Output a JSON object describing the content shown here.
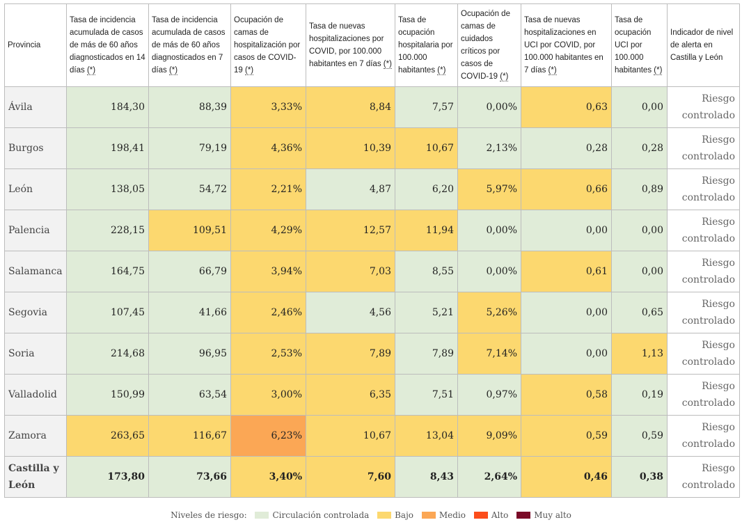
{
  "headers": {
    "province": "Provincia",
    "c1": "Tasa de incidencia acumulada de casos de más de 60 años diagnosticados en 14 días",
    "c2": "Tasa de incidencia acumulada de casos de más de 60 años diagnosticados en 7 días",
    "c3": "Ocupación de camas de hospitalización por casos de COVID-19",
    "c4": "Tasa de nuevas hospitalizaciones por COVID, por 100.000 habitantes en 7 días",
    "c5": "Tasa de ocupación hospitalaria por 100.000 habitantes",
    "c6": "Ocupación de camas de cuidados críticos por casos de COVID-19",
    "c7": "Tasa de nuevas hospitalizaciones en UCI por COVID, por 100.000 habitantes en 7 días",
    "c8": "Tasa de ocupación UCI por 100.000 habitantes",
    "alert": "Indicador de nivel de alerta en Castilla y León",
    "footnote_marker": "(*)"
  },
  "rows": [
    {
      "province": "Ávila",
      "values": [
        "184,30",
        "88,39",
        "3,33%",
        "8,84",
        "7,57",
        "0,00%",
        "0,63",
        "0,00"
      ],
      "levels": [
        "green",
        "green",
        "yellow",
        "yellow",
        "green",
        "green",
        "yellow",
        "green"
      ],
      "alert": "Riesgo controlado"
    },
    {
      "province": "Burgos",
      "values": [
        "198,41",
        "79,19",
        "4,36%",
        "10,39",
        "10,67",
        "2,13%",
        "0,28",
        "0,28"
      ],
      "levels": [
        "green",
        "green",
        "yellow",
        "yellow",
        "yellow",
        "green",
        "green",
        "green"
      ],
      "alert": "Riesgo controlado"
    },
    {
      "province": "León",
      "values": [
        "138,05",
        "54,72",
        "2,21%",
        "4,87",
        "6,20",
        "5,97%",
        "0,66",
        "0,89"
      ],
      "levels": [
        "green",
        "green",
        "yellow",
        "green",
        "green",
        "yellow",
        "yellow",
        "green"
      ],
      "alert": "Riesgo controlado"
    },
    {
      "province": "Palencia",
      "values": [
        "228,15",
        "109,51",
        "4,29%",
        "12,57",
        "11,94",
        "0,00%",
        "0,00",
        "0,00"
      ],
      "levels": [
        "green",
        "yellow",
        "yellow",
        "yellow",
        "yellow",
        "green",
        "green",
        "green"
      ],
      "alert": "Riesgo controlado"
    },
    {
      "province": "Salamanca",
      "values": [
        "164,75",
        "66,79",
        "3,94%",
        "7,03",
        "8,55",
        "0,00%",
        "0,61",
        "0,00"
      ],
      "levels": [
        "green",
        "green",
        "yellow",
        "yellow",
        "green",
        "green",
        "yellow",
        "green"
      ],
      "alert": "Riesgo controlado"
    },
    {
      "province": "Segovia",
      "values": [
        "107,45",
        "41,66",
        "2,46%",
        "4,56",
        "5,21",
        "5,26%",
        "0,00",
        "0,65"
      ],
      "levels": [
        "green",
        "green",
        "yellow",
        "green",
        "green",
        "yellow",
        "green",
        "green"
      ],
      "alert": "Riesgo controlado"
    },
    {
      "province": "Soria",
      "values": [
        "214,68",
        "96,95",
        "2,53%",
        "7,89",
        "7,89",
        "7,14%",
        "0,00",
        "1,13"
      ],
      "levels": [
        "green",
        "green",
        "yellow",
        "yellow",
        "green",
        "yellow",
        "green",
        "yellow"
      ],
      "alert": "Riesgo controlado"
    },
    {
      "province": "Valladolid",
      "values": [
        "150,99",
        "63,54",
        "3,00%",
        "6,35",
        "7,51",
        "0,97%",
        "0,58",
        "0,19"
      ],
      "levels": [
        "green",
        "green",
        "yellow",
        "yellow",
        "green",
        "green",
        "yellow",
        "green"
      ],
      "alert": "Riesgo controlado"
    },
    {
      "province": "Zamora",
      "values": [
        "263,65",
        "116,67",
        "6,23%",
        "10,67",
        "13,04",
        "9,09%",
        "0,59",
        "0,59"
      ],
      "levels": [
        "yellow",
        "yellow",
        "orange",
        "yellow",
        "yellow",
        "yellow",
        "yellow",
        "green"
      ],
      "alert": "Riesgo controlado"
    },
    {
      "province": "Castilla y León",
      "values": [
        "173,80",
        "73,66",
        "3,40%",
        "7,60",
        "8,43",
        "2,64%",
        "0,46",
        "0,38"
      ],
      "levels": [
        "green",
        "green",
        "yellow",
        "yellow",
        "green",
        "green",
        "yellow",
        "green"
      ],
      "alert": "Riesgo controlado",
      "total": true
    }
  ],
  "legend": {
    "title": "Niveles de riesgo:",
    "items": [
      {
        "label": "Circulación controlada",
        "color": "#e0ecd8"
      },
      {
        "label": "Bajo",
        "color": "#fcd86f"
      },
      {
        "label": "Medio",
        "color": "#fba755"
      },
      {
        "label": "Alto",
        "color": "#fc4d1b"
      },
      {
        "label": "Muy alto",
        "color": "#7a0a27"
      }
    ]
  }
}
